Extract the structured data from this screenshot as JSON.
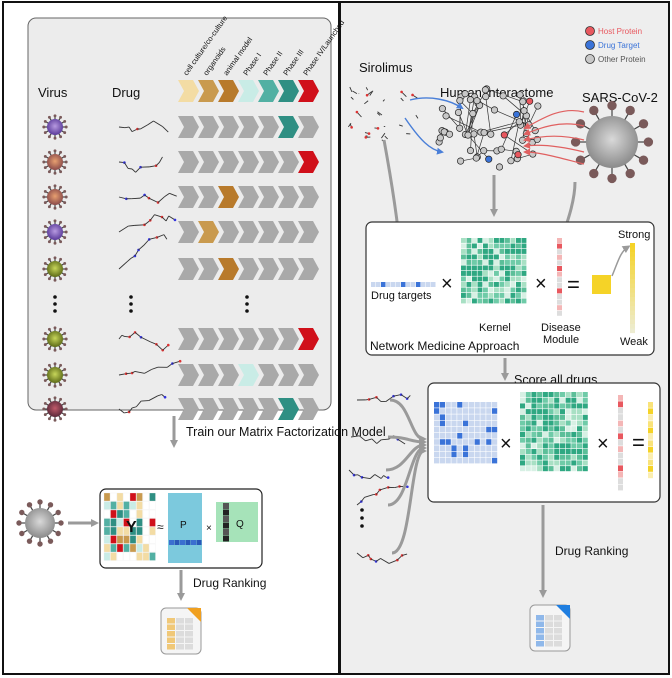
{
  "left": {
    "headers": {
      "virus": "Virus",
      "drug": "Drug"
    },
    "phases": [
      "cell culture/co-culture",
      "organoids",
      "animal model",
      "Phase I",
      "Phase II",
      "Phase III",
      "Phase IV/Launched"
    ],
    "phase_colors": [
      "#f3dca4",
      "#c99a4e",
      "#b87a2b",
      "#c9ece6",
      "#52b0a3",
      "#2f8f83",
      "#d0101a"
    ],
    "row_highest_phase": [
      5,
      6,
      2,
      1,
      2,
      null,
      6,
      3,
      5
    ],
    "ellipsis_row": 5,
    "train_label": "Train our Matrix Factorization Model",
    "mf_labels": {
      "y": "Y",
      "approx": "≈",
      "p": "P",
      "times": "×",
      "q": "Q"
    },
    "ranking_label": "Drug Ranking"
  },
  "right": {
    "legend": [
      {
        "label": "Host Protein",
        "color": "#e8585f",
        "text_color": "#e8585f"
      },
      {
        "label": "Drug Target",
        "color": "#3a73d8",
        "text_color": "#3a73d8"
      },
      {
        "label": "Other Protein",
        "color": "#c8c8c8",
        "text_color": "#555555"
      }
    ],
    "sirolimus": "Sirolimus",
    "interactome": "Human interactome",
    "sars": "SARS-CoV-2",
    "nma": {
      "drug_targets": "Drug targets",
      "times1": "×",
      "kernel": "Kernel",
      "times2": "×",
      "disease_module_1": "Disease",
      "disease_module_2": "Module",
      "equals": "=",
      "strong": "Strong",
      "weak": "Weak",
      "title": "Network Medicine Approach"
    },
    "score_label": "Score all drugs",
    "score_symbols": {
      "times1": "×",
      "times2": "×",
      "equals": "="
    },
    "ranking_label": "Drug Ranking"
  }
}
